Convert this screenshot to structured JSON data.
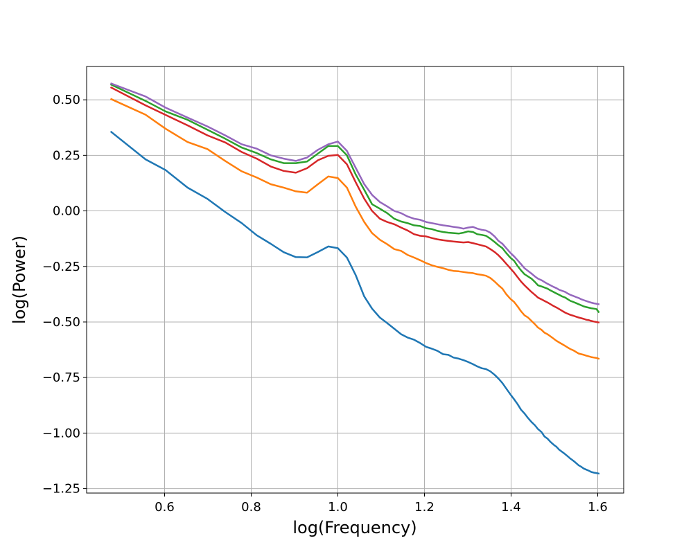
{
  "chart_data": {
    "type": "line",
    "title": "",
    "xlabel": "log(Frequency)",
    "ylabel": "log(Power)",
    "xlim": [
      0.42,
      1.66
    ],
    "ylim": [
      -1.27,
      0.65
    ],
    "xticks": [
      0.6,
      0.8,
      1.0,
      1.2,
      1.4,
      1.6
    ],
    "xtick_labels": [
      "0.6",
      "0.8",
      "1.0",
      "1.2",
      "1.4",
      "1.6"
    ],
    "yticks": [
      0.5,
      0.25,
      0.0,
      -0.25,
      -0.5,
      -0.75,
      -1.0,
      -1.25
    ],
    "ytick_labels": [
      "0.50",
      "0.25",
      "0.00",
      "−0.25",
      "−0.50",
      "−0.75",
      "−1.00",
      "−1.25"
    ],
    "grid": true,
    "legend": false,
    "series": [
      {
        "color": "#1f77b4",
        "x": [
          0.477,
          0.556,
          0.602,
          0.653,
          0.699,
          0.74,
          0.778,
          0.813,
          0.845,
          0.875,
          0.903,
          0.929,
          0.954,
          0.978,
          1.0,
          1.021,
          1.041,
          1.061,
          1.079,
          1.097,
          1.114,
          1.13,
          1.146,
          1.161,
          1.176,
          1.19,
          1.204,
          1.217,
          1.23,
          1.243,
          1.255,
          1.267,
          1.279,
          1.29,
          1.301,
          1.312,
          1.322,
          1.332,
          1.342,
          1.352,
          1.362,
          1.371,
          1.38,
          1.389,
          1.398,
          1.407,
          1.415,
          1.423,
          1.431,
          1.439,
          1.447,
          1.455,
          1.462,
          1.47,
          1.477,
          1.484,
          1.491,
          1.498,
          1.505,
          1.511,
          1.518,
          1.525,
          1.531,
          1.537,
          1.544,
          1.55,
          1.556,
          1.562,
          1.568,
          1.574,
          1.58,
          1.585,
          1.591,
          1.597,
          1.602
        ],
        "y": [
          0.355,
          0.232,
          0.184,
          0.105,
          0.054,
          -0.005,
          -0.055,
          -0.11,
          -0.148,
          -0.186,
          -0.208,
          -0.209,
          -0.185,
          -0.16,
          -0.168,
          -0.21,
          -0.288,
          -0.385,
          -0.44,
          -0.48,
          -0.505,
          -0.53,
          -0.555,
          -0.57,
          -0.58,
          -0.595,
          -0.612,
          -0.62,
          -0.63,
          -0.645,
          -0.648,
          -0.66,
          -0.665,
          -0.672,
          -0.68,
          -0.69,
          -0.7,
          -0.708,
          -0.712,
          -0.722,
          -0.738,
          -0.755,
          -0.775,
          -0.8,
          -0.825,
          -0.848,
          -0.87,
          -0.895,
          -0.912,
          -0.932,
          -0.95,
          -0.965,
          -0.982,
          -0.995,
          -1.015,
          -1.025,
          -1.04,
          -1.052,
          -1.062,
          -1.075,
          -1.085,
          -1.095,
          -1.105,
          -1.115,
          -1.125,
          -1.135,
          -1.145,
          -1.152,
          -1.16,
          -1.165,
          -1.17,
          -1.175,
          -1.178,
          -1.18,
          -1.182
        ]
      },
      {
        "color": "#ff7f0e",
        "x": [
          0.477,
          0.556,
          0.602,
          0.653,
          0.699,
          0.74,
          0.778,
          0.813,
          0.845,
          0.875,
          0.903,
          0.929,
          0.954,
          0.978,
          1.0,
          1.021,
          1.041,
          1.061,
          1.079,
          1.097,
          1.114,
          1.13,
          1.146,
          1.161,
          1.176,
          1.19,
          1.204,
          1.217,
          1.23,
          1.243,
          1.255,
          1.267,
          1.279,
          1.29,
          1.301,
          1.312,
          1.322,
          1.332,
          1.342,
          1.352,
          1.362,
          1.371,
          1.38,
          1.389,
          1.398,
          1.407,
          1.415,
          1.423,
          1.431,
          1.439,
          1.447,
          1.455,
          1.462,
          1.47,
          1.477,
          1.484,
          1.491,
          1.498,
          1.505,
          1.511,
          1.518,
          1.525,
          1.531,
          1.537,
          1.544,
          1.55,
          1.556,
          1.562,
          1.568,
          1.574,
          1.58,
          1.585,
          1.591,
          1.597,
          1.602
        ],
        "y": [
          0.503,
          0.433,
          0.37,
          0.31,
          0.278,
          0.225,
          0.178,
          0.15,
          0.12,
          0.105,
          0.088,
          0.082,
          0.12,
          0.155,
          0.148,
          0.105,
          0.02,
          -0.05,
          -0.1,
          -0.13,
          -0.15,
          -0.172,
          -0.18,
          -0.198,
          -0.21,
          -0.222,
          -0.235,
          -0.245,
          -0.252,
          -0.258,
          -0.265,
          -0.27,
          -0.272,
          -0.275,
          -0.278,
          -0.28,
          -0.285,
          -0.288,
          -0.292,
          -0.302,
          -0.318,
          -0.335,
          -0.35,
          -0.375,
          -0.395,
          -0.41,
          -0.43,
          -0.452,
          -0.47,
          -0.48,
          -0.495,
          -0.51,
          -0.525,
          -0.535,
          -0.548,
          -0.555,
          -0.565,
          -0.575,
          -0.585,
          -0.592,
          -0.6,
          -0.608,
          -0.615,
          -0.622,
          -0.628,
          -0.635,
          -0.642,
          -0.645,
          -0.648,
          -0.652,
          -0.655,
          -0.658,
          -0.66,
          -0.662,
          -0.665
        ]
      },
      {
        "color": "#2ca02c",
        "x": [
          0.477,
          0.556,
          0.602,
          0.653,
          0.699,
          0.74,
          0.778,
          0.813,
          0.845,
          0.875,
          0.903,
          0.929,
          0.954,
          0.978,
          1.0,
          1.021,
          1.041,
          1.061,
          1.079,
          1.097,
          1.114,
          1.13,
          1.146,
          1.161,
          1.176,
          1.19,
          1.204,
          1.217,
          1.23,
          1.243,
          1.255,
          1.267,
          1.279,
          1.29,
          1.301,
          1.312,
          1.322,
          1.332,
          1.342,
          1.352,
          1.362,
          1.371,
          1.38,
          1.389,
          1.398,
          1.407,
          1.415,
          1.423,
          1.431,
          1.439,
          1.447,
          1.455,
          1.462,
          1.47,
          1.477,
          1.484,
          1.491,
          1.498,
          1.505,
          1.511,
          1.518,
          1.525,
          1.531,
          1.537,
          1.544,
          1.55,
          1.556,
          1.562,
          1.568,
          1.574,
          1.58,
          1.585,
          1.591,
          1.597,
          1.602
        ],
        "y": [
          0.568,
          0.495,
          0.448,
          0.41,
          0.365,
          0.325,
          0.285,
          0.26,
          0.232,
          0.215,
          0.215,
          0.222,
          0.258,
          0.292,
          0.292,
          0.25,
          0.165,
          0.095,
          0.03,
          0.01,
          -0.01,
          -0.035,
          -0.048,
          -0.055,
          -0.065,
          -0.068,
          -0.078,
          -0.082,
          -0.09,
          -0.095,
          -0.098,
          -0.1,
          -0.102,
          -0.098,
          -0.092,
          -0.095,
          -0.105,
          -0.108,
          -0.112,
          -0.125,
          -0.14,
          -0.155,
          -0.168,
          -0.19,
          -0.21,
          -0.225,
          -0.248,
          -0.268,
          -0.285,
          -0.295,
          -0.305,
          -0.32,
          -0.335,
          -0.34,
          -0.345,
          -0.35,
          -0.358,
          -0.365,
          -0.372,
          -0.378,
          -0.385,
          -0.39,
          -0.398,
          -0.405,
          -0.41,
          -0.415,
          -0.42,
          -0.425,
          -0.43,
          -0.433,
          -0.436,
          -0.438,
          -0.44,
          -0.442,
          -0.455
        ]
      },
      {
        "color": "#d62728",
        "x": [
          0.477,
          0.556,
          0.602,
          0.653,
          0.699,
          0.74,
          0.778,
          0.813,
          0.845,
          0.875,
          0.903,
          0.929,
          0.954,
          0.978,
          1.0,
          1.021,
          1.041,
          1.061,
          1.079,
          1.097,
          1.114,
          1.13,
          1.146,
          1.161,
          1.176,
          1.19,
          1.204,
          1.217,
          1.23,
          1.243,
          1.255,
          1.267,
          1.279,
          1.29,
          1.301,
          1.312,
          1.322,
          1.332,
          1.342,
          1.352,
          1.362,
          1.371,
          1.38,
          1.389,
          1.398,
          1.407,
          1.415,
          1.423,
          1.431,
          1.439,
          1.447,
          1.455,
          1.462,
          1.47,
          1.477,
          1.484,
          1.491,
          1.498,
          1.505,
          1.511,
          1.518,
          1.525,
          1.531,
          1.537,
          1.544,
          1.55,
          1.556,
          1.562,
          1.568,
          1.574,
          1.58,
          1.585,
          1.591,
          1.597,
          1.602
        ],
        "y": [
          0.555,
          0.475,
          0.432,
          0.385,
          0.34,
          0.308,
          0.265,
          0.235,
          0.2,
          0.18,
          0.172,
          0.192,
          0.228,
          0.248,
          0.252,
          0.21,
          0.13,
          0.055,
          0.0,
          -0.035,
          -0.05,
          -0.06,
          -0.075,
          -0.088,
          -0.105,
          -0.112,
          -0.115,
          -0.122,
          -0.128,
          -0.132,
          -0.135,
          -0.138,
          -0.14,
          -0.142,
          -0.14,
          -0.145,
          -0.15,
          -0.155,
          -0.16,
          -0.172,
          -0.185,
          -0.2,
          -0.218,
          -0.238,
          -0.258,
          -0.278,
          -0.298,
          -0.318,
          -0.335,
          -0.35,
          -0.365,
          -0.378,
          -0.39,
          -0.398,
          -0.405,
          -0.412,
          -0.42,
          -0.428,
          -0.435,
          -0.442,
          -0.45,
          -0.458,
          -0.463,
          -0.468,
          -0.472,
          -0.476,
          -0.48,
          -0.483,
          -0.486,
          -0.49,
          -0.492,
          -0.495,
          -0.498,
          -0.5,
          -0.502
        ]
      },
      {
        "color": "#9467bd",
        "x": [
          0.477,
          0.556,
          0.602,
          0.653,
          0.699,
          0.74,
          0.778,
          0.813,
          0.845,
          0.875,
          0.903,
          0.929,
          0.954,
          0.978,
          1.0,
          1.021,
          1.041,
          1.061,
          1.079,
          1.097,
          1.114,
          1.13,
          1.146,
          1.161,
          1.176,
          1.19,
          1.204,
          1.217,
          1.23,
          1.243,
          1.255,
          1.267,
          1.279,
          1.29,
          1.301,
          1.312,
          1.322,
          1.332,
          1.342,
          1.352,
          1.362,
          1.371,
          1.38,
          1.389,
          1.398,
          1.407,
          1.415,
          1.423,
          1.431,
          1.439,
          1.447,
          1.455,
          1.462,
          1.47,
          1.477,
          1.484,
          1.491,
          1.498,
          1.505,
          1.511,
          1.518,
          1.525,
          1.531,
          1.537,
          1.544,
          1.55,
          1.556,
          1.562,
          1.568,
          1.574,
          1.58,
          1.585,
          1.591,
          1.597,
          1.602
        ],
        "y": [
          0.573,
          0.515,
          0.465,
          0.42,
          0.38,
          0.34,
          0.3,
          0.28,
          0.25,
          0.235,
          0.225,
          0.24,
          0.275,
          0.3,
          0.312,
          0.27,
          0.195,
          0.12,
          0.072,
          0.04,
          0.02,
          0.0,
          -0.01,
          -0.025,
          -0.035,
          -0.04,
          -0.05,
          -0.055,
          -0.06,
          -0.065,
          -0.068,
          -0.072,
          -0.075,
          -0.08,
          -0.075,
          -0.072,
          -0.08,
          -0.085,
          -0.088,
          -0.098,
          -0.115,
          -0.135,
          -0.148,
          -0.168,
          -0.188,
          -0.205,
          -0.222,
          -0.24,
          -0.258,
          -0.27,
          -0.282,
          -0.295,
          -0.305,
          -0.312,
          -0.32,
          -0.328,
          -0.335,
          -0.342,
          -0.348,
          -0.355,
          -0.36,
          -0.365,
          -0.372,
          -0.378,
          -0.383,
          -0.388,
          -0.392,
          -0.398,
          -0.402,
          -0.406,
          -0.41,
          -0.413,
          -0.416,
          -0.418,
          -0.42
        ]
      }
    ]
  }
}
